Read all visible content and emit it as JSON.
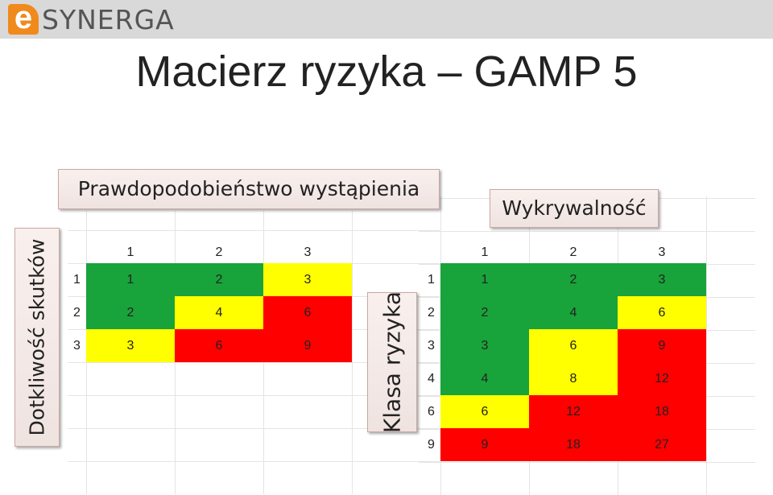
{
  "header": {
    "logo_e": "e",
    "logo_text": "SYNERGA"
  },
  "title": "Macierz ryzyka – GAMP 5",
  "labels": {
    "probability": "Prawdopodobieństwo wystąpienia",
    "detectability": "Wykrywalność",
    "severity": "Dotkliwość skutków",
    "risk_class": "Klasa ryzyka"
  },
  "colors": {
    "green": "#19a33b",
    "yellow": "#ffff00",
    "red": "#ff0000",
    "topbar": "#d9d9d9",
    "logo": "#f08a1c"
  },
  "matrix1": {
    "col_headers": [
      "1",
      "2",
      "3"
    ],
    "row_headers": [
      "1",
      "2",
      "3"
    ],
    "values": [
      [
        "1",
        "2",
        "3"
      ],
      [
        "2",
        "4",
        "6"
      ],
      [
        "3",
        "6",
        "9"
      ]
    ],
    "colors": [
      [
        "green",
        "green",
        "yellow"
      ],
      [
        "green",
        "yellow",
        "red"
      ],
      [
        "yellow",
        "red",
        "red"
      ]
    ]
  },
  "matrix2": {
    "col_headers": [
      "1",
      "2",
      "3"
    ],
    "row_headers": [
      "1",
      "2",
      "3",
      "4",
      "6",
      "9"
    ],
    "values": [
      [
        "1",
        "2",
        "3"
      ],
      [
        "2",
        "4",
        "6"
      ],
      [
        "3",
        "6",
        "9"
      ],
      [
        "4",
        "8",
        "12"
      ],
      [
        "6",
        "12",
        "18"
      ],
      [
        "9",
        "18",
        "27"
      ]
    ],
    "colors": [
      [
        "green",
        "green",
        "green"
      ],
      [
        "green",
        "green",
        "yellow"
      ],
      [
        "green",
        "yellow",
        "red"
      ],
      [
        "green",
        "yellow",
        "red"
      ],
      [
        "yellow",
        "red",
        "red"
      ],
      [
        "red",
        "red",
        "red"
      ]
    ]
  }
}
